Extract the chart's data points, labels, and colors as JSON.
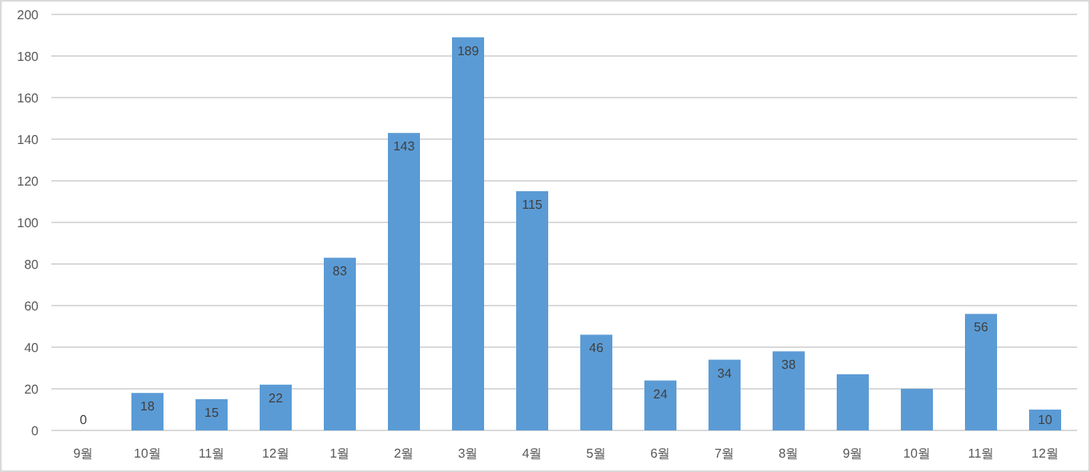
{
  "chart_data": {
    "type": "bar",
    "categories": [
      "9월",
      "10월",
      "11월",
      "12월",
      "1월",
      "2월",
      "3월",
      "4월",
      "5월",
      "6월",
      "7월",
      "8월",
      "9월",
      "10월",
      "11월",
      "12월"
    ],
    "values": [
      0,
      18,
      15,
      22,
      83,
      143,
      189,
      115,
      46,
      24,
      34,
      38,
      27,
      20,
      56,
      10
    ],
    "value_labels": [
      "0",
      "18",
      "15",
      "22",
      "83",
      "143",
      "189",
      "115",
      "46",
      "24",
      "34",
      "38",
      null,
      null,
      "56",
      "10"
    ],
    "color": "#5b9bd5",
    "ylim": [
      0,
      200
    ],
    "yticks": [
      0,
      20,
      40,
      60,
      80,
      100,
      120,
      140,
      160,
      180,
      200
    ],
    "grid": "y"
  }
}
